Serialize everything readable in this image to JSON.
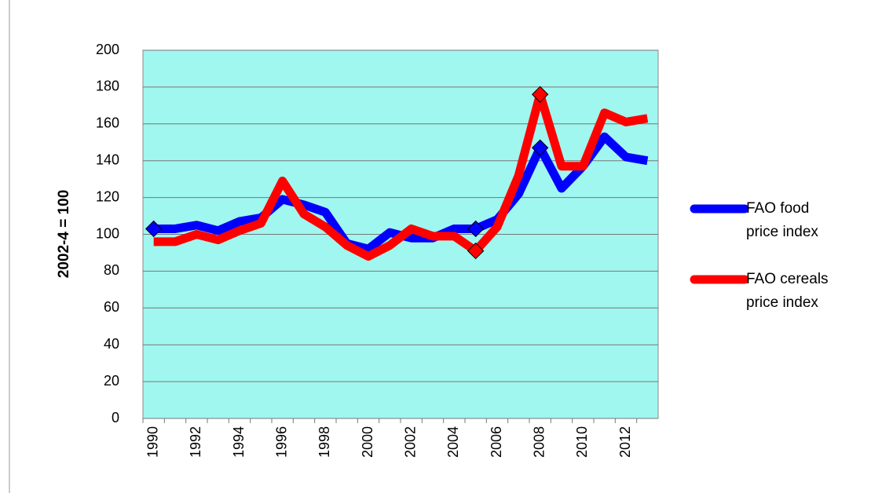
{
  "chart_data": {
    "type": "line",
    "y_label": "2002-4 = 100",
    "categories": [
      "1990",
      null,
      "1992",
      null,
      "1994",
      null,
      "1996",
      null,
      "1998",
      null,
      "2000",
      null,
      "2002",
      null,
      "2004",
      null,
      "2006",
      null,
      "2008",
      null,
      "2010",
      null,
      "2012",
      null
    ],
    "series": [
      {
        "name": "FAO food price index",
        "color": "#0000ff",
        "values": [
          103,
          103,
          105,
          102,
          107,
          109,
          119,
          116,
          112,
          95,
          92,
          101,
          98,
          98,
          103,
          103,
          108,
          122,
          147,
          125,
          137,
          153,
          142,
          140
        ],
        "markers": [
          0,
          15,
          18
        ]
      },
      {
        "name": "FAO cereals price index",
        "color": "#ff0000",
        "values": [
          96,
          96,
          100,
          97,
          102,
          106,
          129,
          111,
          104,
          94,
          88,
          94,
          103,
          99,
          99,
          91,
          104,
          132,
          176,
          137,
          137,
          166,
          161,
          163
        ],
        "markers": [
          15,
          18
        ]
      }
    ],
    "ylim": [
      0,
      200
    ],
    "yticks": [
      0,
      20,
      40,
      60,
      80,
      100,
      120,
      140,
      160,
      180,
      200
    ],
    "grid": true,
    "background": "#a0f7ef",
    "legend": "right"
  }
}
